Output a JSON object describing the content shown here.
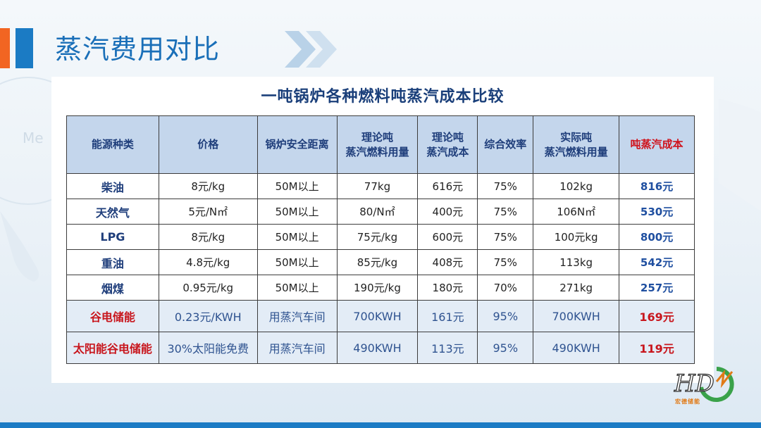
{
  "slide": {
    "title": "蒸汽费用对比",
    "brand_colors": {
      "orange": "#f26522",
      "blue": "#1b7bc4",
      "red": "#c8161d"
    }
  },
  "table": {
    "title": "一吨锅炉各种燃料吨蒸汽成本比较",
    "headers": [
      [
        "能源种类"
      ],
      [
        "价格"
      ],
      [
        "锅炉安全距离"
      ],
      [
        "理论吨",
        "蒸汽燃料用量"
      ],
      [
        "理论吨",
        "蒸汽成本"
      ],
      [
        "综合效率"
      ],
      [
        "实际吨",
        "蒸汽燃料用量"
      ],
      [
        "吨蒸汽成本"
      ]
    ],
    "rows": [
      [
        "柴油",
        "8元/kg",
        "50M以上",
        "77kg",
        "616元",
        "75%",
        "102kg",
        "816元"
      ],
      [
        "天然气",
        "5元/N㎡",
        "50M以上",
        "80/N㎡",
        "400元",
        "75%",
        "106N㎡",
        "530元"
      ],
      [
        "LPG",
        "8元/kg",
        "50M以上",
        "75元/kg",
        "600元",
        "75%",
        "100元kg",
        "800元"
      ],
      [
        "重油",
        "4.8元/kg",
        "50M以上",
        "85元/kg",
        "408元",
        "75%",
        "113kg",
        "542元"
      ],
      [
        "烟煤",
        "0.95元/kg",
        "50M以上",
        "190元/kg",
        "180元",
        "70%",
        "271kg",
        "257元"
      ],
      [
        "谷电储能",
        "0.23元/KWH",
        "用蒸汽车间",
        "700KWH",
        "161元",
        "95%",
        "700KWH",
        "169元"
      ],
      [
        "太阳能谷电储能",
        "30%太阳能免费",
        "用蒸汽车间",
        "490KWH",
        "113元",
        "95%",
        "490KWH",
        "119元"
      ]
    ]
  },
  "logo": {
    "mark": "HD",
    "subtitle": "宏德储能"
  }
}
